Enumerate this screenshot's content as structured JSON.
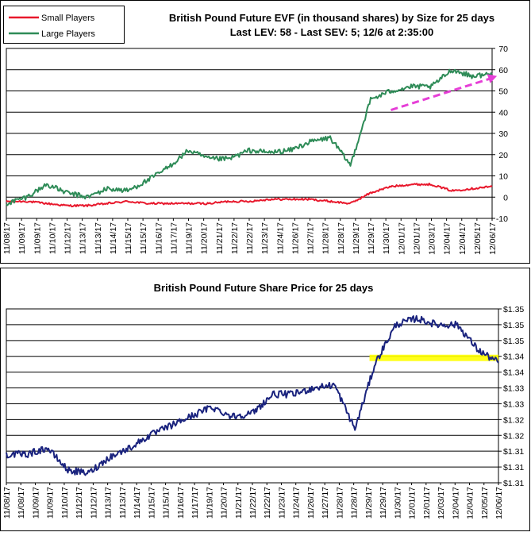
{
  "chart_data": [
    {
      "type": "line",
      "title": "British Pound Future EVF (in thousand shares) by Size for 25 days",
      "subtitle": "Last LEV: 58 - Last SEV: 5; 12/6 at 2:35:00",
      "ylim": [
        -10,
        70
      ],
      "yticks": [
        -10,
        0,
        10,
        20,
        30,
        40,
        50,
        60,
        70
      ],
      "grid": true,
      "legend_position": "top-left",
      "categories": [
        "11/08/17",
        "11/09/17",
        "11/10/17",
        "11/12/17",
        "11/13/17",
        "11/14/17",
        "11/15/17",
        "11/16/17",
        "11/17/17",
        "11/19/17",
        "11/20/17",
        "11/21/17",
        "11/22/17",
        "11/23/17",
        "11/24/17",
        "11/26/17",
        "11/27/17",
        "11/28/17",
        "11/29/17",
        "11/30/17",
        "12/01/17",
        "12/03/17",
        "12/04/17",
        "12/05/17",
        "12/06/17"
      ],
      "tick_labels": [
        "11/08/17",
        "11/09/17",
        "11/09/17",
        "11/10/17",
        "11/12/17",
        "11/13/17",
        "11/13/17",
        "11/14/17",
        "11/15/17",
        "11/15/17",
        "11/16/17",
        "11/17/17",
        "11/19/17",
        "11/20/17",
        "11/21/17",
        "11/22/17",
        "11/22/17",
        "11/23/17",
        "11/24/17",
        "11/26/17",
        "11/27/17",
        "11/28/17",
        "11/28/17",
        "11/29/17",
        "11/29/17",
        "11/30/17",
        "12/01/17",
        "12/01/17",
        "12/03/17",
        "12/04/17",
        "12/04/17",
        "12/05/17",
        "12/06/17"
      ],
      "series": [
        {
          "name": "Small Players",
          "color": "#e8182c",
          "values": [
            -2,
            -2,
            -3,
            -4,
            -4,
            -3,
            -2,
            -3,
            -3,
            -3,
            -3,
            -2,
            -2,
            -1,
            -1,
            -1,
            -2,
            -3,
            2,
            5,
            6,
            6,
            3,
            4,
            5
          ]
        },
        {
          "name": "Large Players",
          "color": "#2e8b57",
          "values": [
            -3,
            0,
            6,
            2,
            0,
            4,
            3,
            8,
            14,
            22,
            18,
            18,
            22,
            21,
            22,
            26,
            28,
            15,
            46,
            50,
            52,
            52,
            60,
            57,
            58
          ]
        }
      ],
      "annotations": [
        {
          "type": "arrow",
          "color": "#e63fd7",
          "from": {
            "category": "11/30/17",
            "value": 41
          },
          "to": {
            "category": "12/06/17",
            "value": 57
          }
        }
      ]
    },
    {
      "type": "line",
      "title": "British Pound Future Share Price for 25 days",
      "ylim": [
        1.3,
        1.355
      ],
      "yticks": [
        1.3,
        1.305,
        1.31,
        1.315,
        1.32,
        1.325,
        1.33,
        1.335,
        1.34,
        1.345,
        1.35,
        1.355
      ],
      "ytick_labels": [
        "$1.31",
        "$1.31",
        "$1.31",
        "$1.32",
        "$1.32",
        "$1.33",
        "$1.33",
        "$1.34",
        "$1.34",
        "$1.35",
        "$1.35",
        "$1.35"
      ],
      "grid": true,
      "categories": [
        "11/08/17",
        "11/09/17",
        "11/10/17",
        "11/12/17",
        "11/13/17",
        "11/14/17",
        "11/15/17",
        "11/16/17",
        "11/17/17",
        "11/19/17",
        "11/20/17",
        "11/21/17",
        "11/22/17",
        "11/23/17",
        "11/24/17",
        "11/26/17",
        "11/27/17",
        "11/28/17",
        "11/29/17",
        "11/30/17",
        "12/01/17",
        "12/03/17",
        "12/04/17",
        "12/05/17",
        "12/06/17"
      ],
      "tick_labels": [
        "11/08/17",
        "11/08/17",
        "11/09/17",
        "11/09/17",
        "11/10/17",
        "11/12/17",
        "11/12/17",
        "11/13/17",
        "11/13/17",
        "11/14/17",
        "11/15/17",
        "11/15/17",
        "11/16/17",
        "11/17/17",
        "11/19/17",
        "11/20/17",
        "11/21/17",
        "11/22/17",
        "11/22/17",
        "11/23/17",
        "11/24/17",
        "11/26/17",
        "11/27/17",
        "11/28/17",
        "11/28/17",
        "11/29/17",
        "11/29/17",
        "11/30/17",
        "12/01/17",
        "12/01/17",
        "12/03/17",
        "12/04/17",
        "12/04/17",
        "12/05/17",
        "12/06/17"
      ],
      "series": [
        {
          "name": "",
          "color": "#1a237e",
          "values": [
            1.309,
            1.309,
            1.311,
            1.304,
            1.303,
            1.308,
            1.311,
            1.315,
            1.318,
            1.321,
            1.324,
            1.321,
            1.322,
            1.328,
            1.328,
            1.33,
            1.331,
            1.317,
            1.338,
            1.35,
            1.352,
            1.35,
            1.35,
            1.342,
            1.338
          ]
        }
      ],
      "annotations": [
        {
          "type": "band",
          "color": "#ffff00",
          "from": {
            "category": "11/29/17",
            "value": 1.3385
          },
          "to": {
            "category": "12/06/17",
            "value": 1.3405
          }
        }
      ]
    }
  ]
}
